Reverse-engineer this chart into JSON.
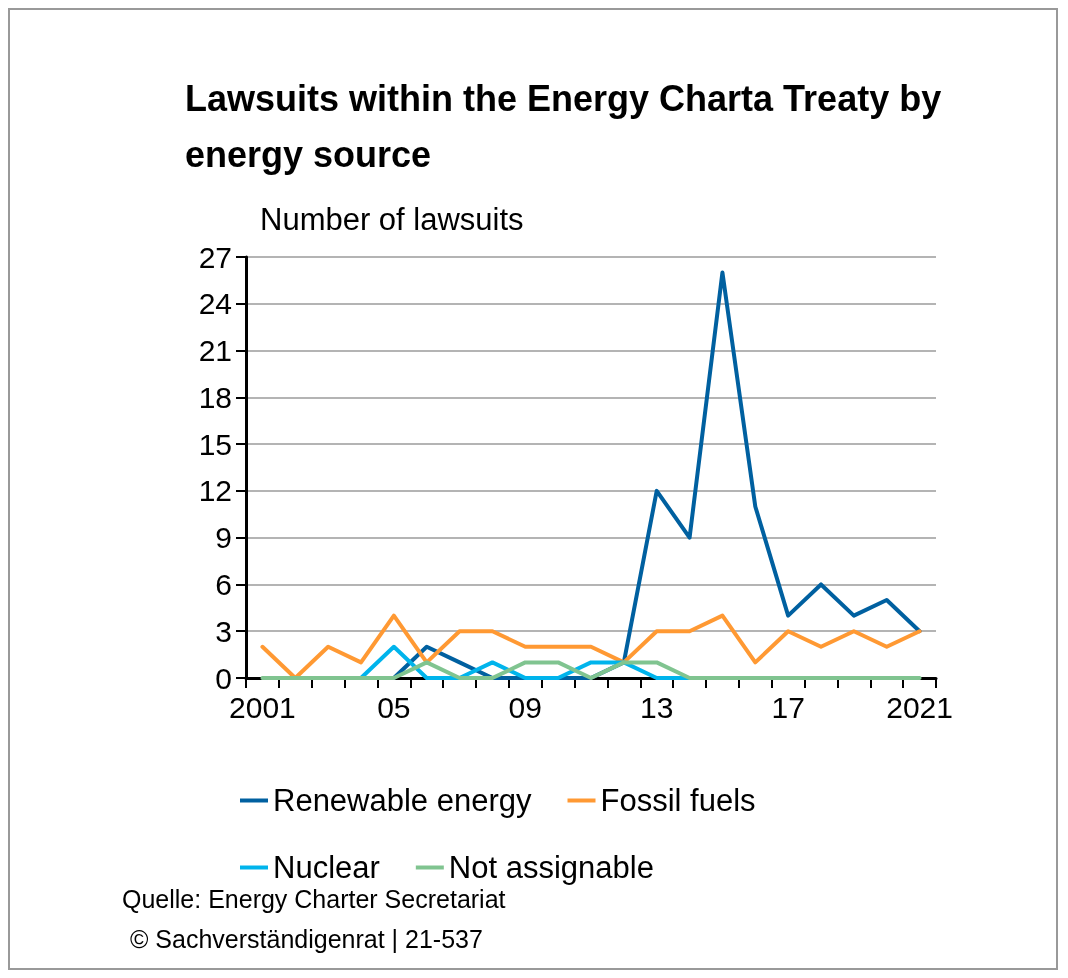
{
  "chart_data": {
    "type": "line",
    "title": "Lawsuits within the Energy Charta Treaty by energy source",
    "ylabel": "Number of lawsuits",
    "categories": [
      "2001",
      null,
      null,
      null,
      "05",
      null,
      null,
      null,
      "09",
      null,
      null,
      null,
      "13",
      null,
      null,
      null,
      "17",
      null,
      null,
      null,
      "2021"
    ],
    "series": [
      {
        "name": "Renewable energy",
        "color": "#0060a0",
        "values": [
          null,
          null,
          null,
          0,
          0,
          2,
          1,
          0,
          0,
          0,
          0,
          1,
          12,
          9,
          26,
          11,
          4,
          6,
          4,
          5,
          3
        ]
      },
      {
        "name": "Fossil fuels",
        "color": "#ff9933",
        "values": [
          2,
          0,
          2,
          1,
          4,
          1,
          3,
          3,
          2,
          2,
          2,
          1,
          3,
          3,
          4,
          1,
          3,
          2,
          3,
          2,
          3
        ]
      },
      {
        "name": "Nuclear",
        "color": "#00b4ec",
        "values": [
          null,
          null,
          0,
          0,
          2,
          0,
          0,
          1,
          0,
          0,
          1,
          1,
          0,
          0,
          0,
          null,
          null,
          null,
          null,
          null,
          null
        ]
      },
      {
        "name": "Not assignable",
        "color": "#80c490",
        "values": [
          0,
          0,
          0,
          0,
          0,
          1,
          0,
          0,
          1,
          1,
          0,
          1,
          1,
          0,
          0,
          0,
          0,
          0,
          0,
          0,
          0
        ]
      }
    ],
    "ylim": [
      0,
      27
    ],
    "yticks": [
      0,
      3,
      6,
      9,
      12,
      15,
      18,
      21,
      24,
      27
    ],
    "grid": "y",
    "legend": "bottom",
    "marker": "none",
    "line_style": "solid",
    "annotations": [
      "Quelle: Energy Charter Secretariat",
      "© Sachverständigenrat | 21-537"
    ]
  }
}
